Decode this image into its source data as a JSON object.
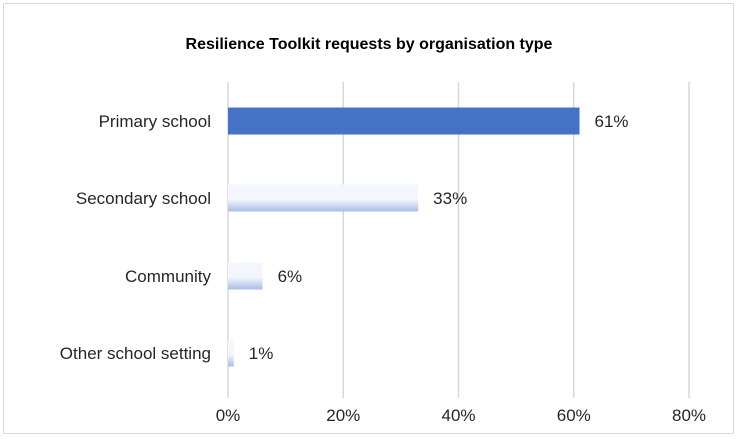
{
  "chart_data": {
    "type": "bar",
    "orientation": "horizontal",
    "title": "Resilience  Toolkit requests by organisation type",
    "xlabel": "",
    "ylabel": "",
    "categories": [
      "Primary school",
      "Secondary school",
      "Community",
      "Other school setting"
    ],
    "values": [
      61,
      33,
      6,
      1
    ],
    "data_labels": [
      "61%",
      "33%",
      "6%",
      "1%"
    ],
    "xlim": [
      0,
      80
    ],
    "x_ticks": [
      0,
      20,
      40,
      60,
      80
    ],
    "x_tick_labels": [
      "0%",
      "20%",
      "40%",
      "60%",
      "80%"
    ],
    "grid": true,
    "legend": "none",
    "colors": {
      "highlight": "#4472c4",
      "gradient_light": "#f3f6fc",
      "gradient_mid": "#a9bde6",
      "gridline": "#d9d9d9",
      "border": "#d9d9d9"
    }
  }
}
